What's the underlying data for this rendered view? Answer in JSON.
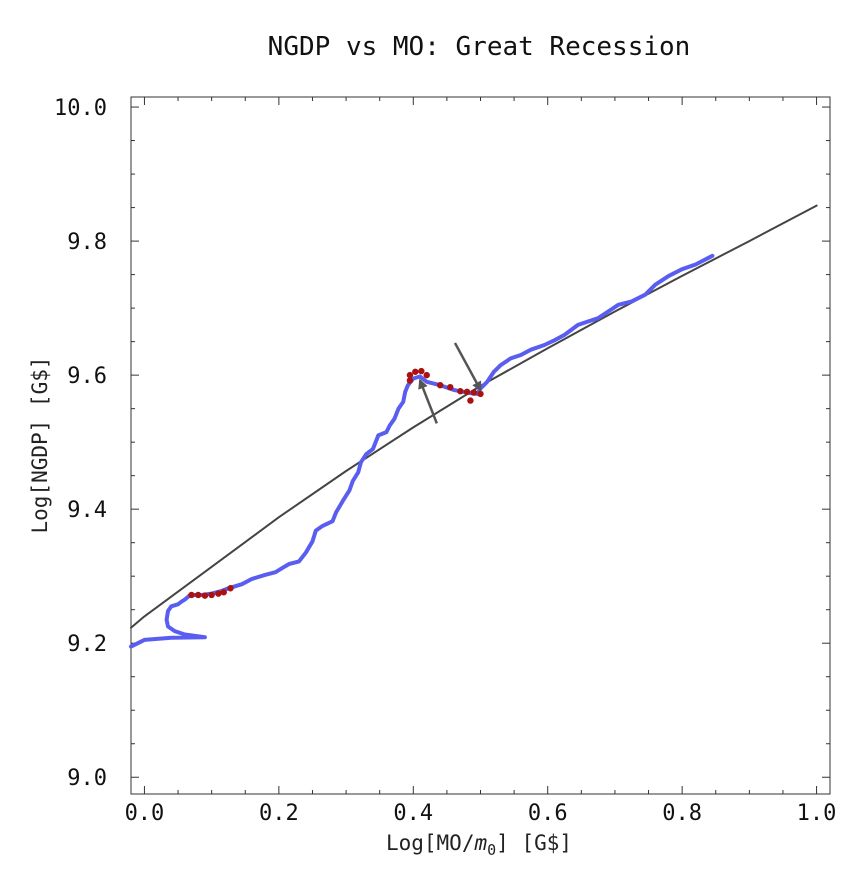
{
  "chart_data": {
    "type": "line",
    "title": "NGDP vs MO: Great Recession",
    "xlabel": "Log[MO/m0] [G$]",
    "ylabel": "Log[NGDP] [G$]",
    "xlabel_parts": {
      "main": "Log[MO/",
      "italic": "m",
      "sub": "0",
      "tail": "]  [G$]"
    },
    "xlim": [
      -0.02,
      1.02
    ],
    "ylim": [
      8.975,
      10.015
    ],
    "x_ticks": [
      0.0,
      0.2,
      0.4,
      0.6,
      0.8,
      1.0
    ],
    "x_tick_labels": [
      "0.0",
      "0.2",
      "0.4",
      "0.6",
      "0.8",
      "1.0"
    ],
    "y_ticks": [
      9.0,
      9.2,
      9.4,
      9.6,
      9.8,
      10.0
    ],
    "y_tick_labels": [
      "9.0",
      "9.2",
      "9.4",
      "9.6",
      "9.8",
      "10.0"
    ],
    "grid": false,
    "series": [
      {
        "name": "data",
        "color": "#5a5ef0",
        "points": [
          [
            -0.02,
            9.195
          ],
          [
            0.0,
            9.205
          ],
          [
            0.04,
            9.208
          ],
          [
            0.09,
            9.209
          ],
          [
            0.06,
            9.213
          ],
          [
            0.045,
            9.218
          ],
          [
            0.035,
            9.225
          ],
          [
            0.033,
            9.235
          ],
          [
            0.035,
            9.248
          ],
          [
            0.04,
            9.255
          ],
          [
            0.05,
            9.258
          ],
          [
            0.055,
            9.262
          ],
          [
            0.06,
            9.265
          ],
          [
            0.068,
            9.272
          ],
          [
            0.085,
            9.272
          ],
          [
            0.1,
            9.274
          ],
          [
            0.115,
            9.278
          ],
          [
            0.125,
            9.282
          ],
          [
            0.145,
            9.288
          ],
          [
            0.16,
            9.296
          ],
          [
            0.18,
            9.302
          ],
          [
            0.195,
            9.306
          ],
          [
            0.205,
            9.312
          ],
          [
            0.215,
            9.318
          ],
          [
            0.23,
            9.322
          ],
          [
            0.24,
            9.335
          ],
          [
            0.25,
            9.352
          ],
          [
            0.255,
            9.368
          ],
          [
            0.265,
            9.375
          ],
          [
            0.28,
            9.382
          ],
          [
            0.285,
            9.395
          ],
          [
            0.295,
            9.412
          ],
          [
            0.305,
            9.428
          ],
          [
            0.31,
            9.442
          ],
          [
            0.318,
            9.455
          ],
          [
            0.322,
            9.47
          ],
          [
            0.33,
            9.482
          ],
          [
            0.34,
            9.49
          ],
          [
            0.348,
            9.51
          ],
          [
            0.36,
            9.515
          ],
          [
            0.365,
            9.525
          ],
          [
            0.372,
            9.535
          ],
          [
            0.378,
            9.55
          ],
          [
            0.385,
            9.56
          ],
          [
            0.388,
            9.575
          ],
          [
            0.392,
            9.585
          ],
          [
            0.4,
            9.595
          ],
          [
            0.41,
            9.598
          ],
          [
            0.42,
            9.59
          ],
          [
            0.44,
            9.585
          ],
          [
            0.46,
            9.578
          ],
          [
            0.48,
            9.574
          ],
          [
            0.495,
            9.572
          ],
          [
            0.5,
            9.58
          ],
          [
            0.51,
            9.59
          ],
          [
            0.52,
            9.605
          ],
          [
            0.53,
            9.615
          ],
          [
            0.545,
            9.625
          ],
          [
            0.56,
            9.63
          ],
          [
            0.575,
            9.638
          ],
          [
            0.595,
            9.645
          ],
          [
            0.61,
            9.652
          ],
          [
            0.625,
            9.66
          ],
          [
            0.645,
            9.675
          ],
          [
            0.66,
            9.68
          ],
          [
            0.675,
            9.685
          ],
          [
            0.69,
            9.695
          ],
          [
            0.705,
            9.705
          ],
          [
            0.725,
            9.71
          ],
          [
            0.745,
            9.72
          ],
          [
            0.76,
            9.735
          ],
          [
            0.78,
            9.748
          ],
          [
            0.8,
            9.758
          ],
          [
            0.82,
            9.765
          ],
          [
            0.845,
            9.778
          ]
        ]
      },
      {
        "name": "fit",
        "color": "#444444",
        "points": [
          [
            -0.02,
            9.223
          ],
          [
            0.0,
            9.24
          ],
          [
            0.1,
            9.314
          ],
          [
            0.2,
            9.388
          ],
          [
            0.3,
            9.457
          ],
          [
            0.4,
            9.522
          ],
          [
            0.5,
            9.584
          ],
          [
            0.6,
            9.64
          ],
          [
            0.7,
            9.695
          ],
          [
            0.8,
            9.748
          ],
          [
            0.9,
            9.8
          ],
          [
            1.0,
            9.853
          ]
        ]
      }
    ],
    "highlighted_points": {
      "color": "#aa1111",
      "points": [
        [
          0.07,
          9.272
        ],
        [
          0.08,
          9.272
        ],
        [
          0.09,
          9.271
        ],
        [
          0.1,
          9.272
        ],
        [
          0.11,
          9.274
        ],
        [
          0.118,
          9.276
        ],
        [
          0.128,
          9.282
        ],
        [
          0.395,
          9.6
        ],
        [
          0.403,
          9.605
        ],
        [
          0.412,
          9.606
        ],
        [
          0.42,
          9.6
        ],
        [
          0.395,
          9.592
        ],
        [
          0.44,
          9.585
        ],
        [
          0.455,
          9.582
        ],
        [
          0.47,
          9.576
        ],
        [
          0.48,
          9.575
        ],
        [
          0.49,
          9.574
        ],
        [
          0.5,
          9.572
        ],
        [
          0.485,
          9.562
        ]
      ]
    },
    "arrows": [
      {
        "from": [
          0.435,
          9.528
        ],
        "to": [
          0.41,
          9.592
        ]
      },
      {
        "from": [
          0.462,
          9.648
        ],
        "to": [
          0.5,
          9.578
        ]
      }
    ]
  }
}
